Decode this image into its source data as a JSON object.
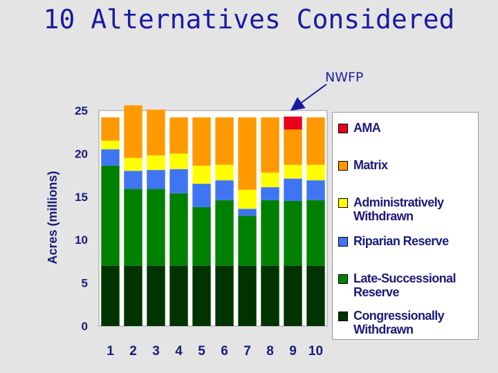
{
  "slide": {
    "title": "10 Alternatives Considered",
    "annotation": "NWFP"
  },
  "chart_data": {
    "type": "bar",
    "stacked": true,
    "ylabel": "Acres (millions)",
    "xlabel": "",
    "ylim": [
      0,
      25
    ],
    "yticks": [
      "0",
      "5",
      "10",
      "15",
      "20",
      "25"
    ],
    "categories": [
      "1",
      "2",
      "3",
      "4",
      "5",
      "6",
      "7",
      "8",
      "9",
      "10"
    ],
    "grid": false,
    "legend_position": "right",
    "annotation": {
      "text": "NWFP",
      "points_to": "9"
    },
    "series": [
      {
        "name": "Congressionally Withdrawn",
        "color": "#003300",
        "values": [
          7.0,
          7.0,
          7.0,
          7.0,
          7.0,
          7.0,
          7.0,
          7.0,
          7.0,
          7.0
        ]
      },
      {
        "name": "Late-Successional Reserve",
        "color": "#008000",
        "values": [
          11.6,
          8.9,
          8.9,
          8.4,
          6.8,
          7.6,
          5.8,
          7.6,
          7.5,
          7.6
        ]
      },
      {
        "name": "Riparian Reserve",
        "color": "#3f74f2",
        "values": [
          1.9,
          2.1,
          2.2,
          2.8,
          2.7,
          2.3,
          0.8,
          1.5,
          2.6,
          2.3
        ]
      },
      {
        "name": "Administratively Withdrawn",
        "color": "#ffff00",
        "values": [
          1.0,
          1.5,
          1.7,
          1.8,
          2.1,
          1.8,
          2.2,
          1.7,
          1.6,
          1.8
        ]
      },
      {
        "name": "Matrix",
        "color": "#ff9900",
        "values": [
          2.7,
          6.1,
          5.3,
          4.2,
          5.6,
          5.5,
          8.4,
          6.4,
          4.1,
          5.5
        ]
      },
      {
        "name": "AMA",
        "color": "#e8001c",
        "values": [
          0,
          0,
          0,
          0,
          0,
          0,
          0,
          0,
          1.5,
          0
        ]
      }
    ],
    "legend": [
      {
        "label": "AMA",
        "color": "#e8001c"
      },
      {
        "label": "Matrix",
        "color": "#ff9900"
      },
      {
        "label": "Administratively Withdrawn",
        "color": "#ffff00"
      },
      {
        "label": "Riparian Reserve",
        "color": "#3f74f2"
      },
      {
        "label": "Late-Successional Reserve",
        "color": "#008000"
      },
      {
        "label": "Congressionally Withdrawn",
        "color": "#003300"
      }
    ]
  }
}
